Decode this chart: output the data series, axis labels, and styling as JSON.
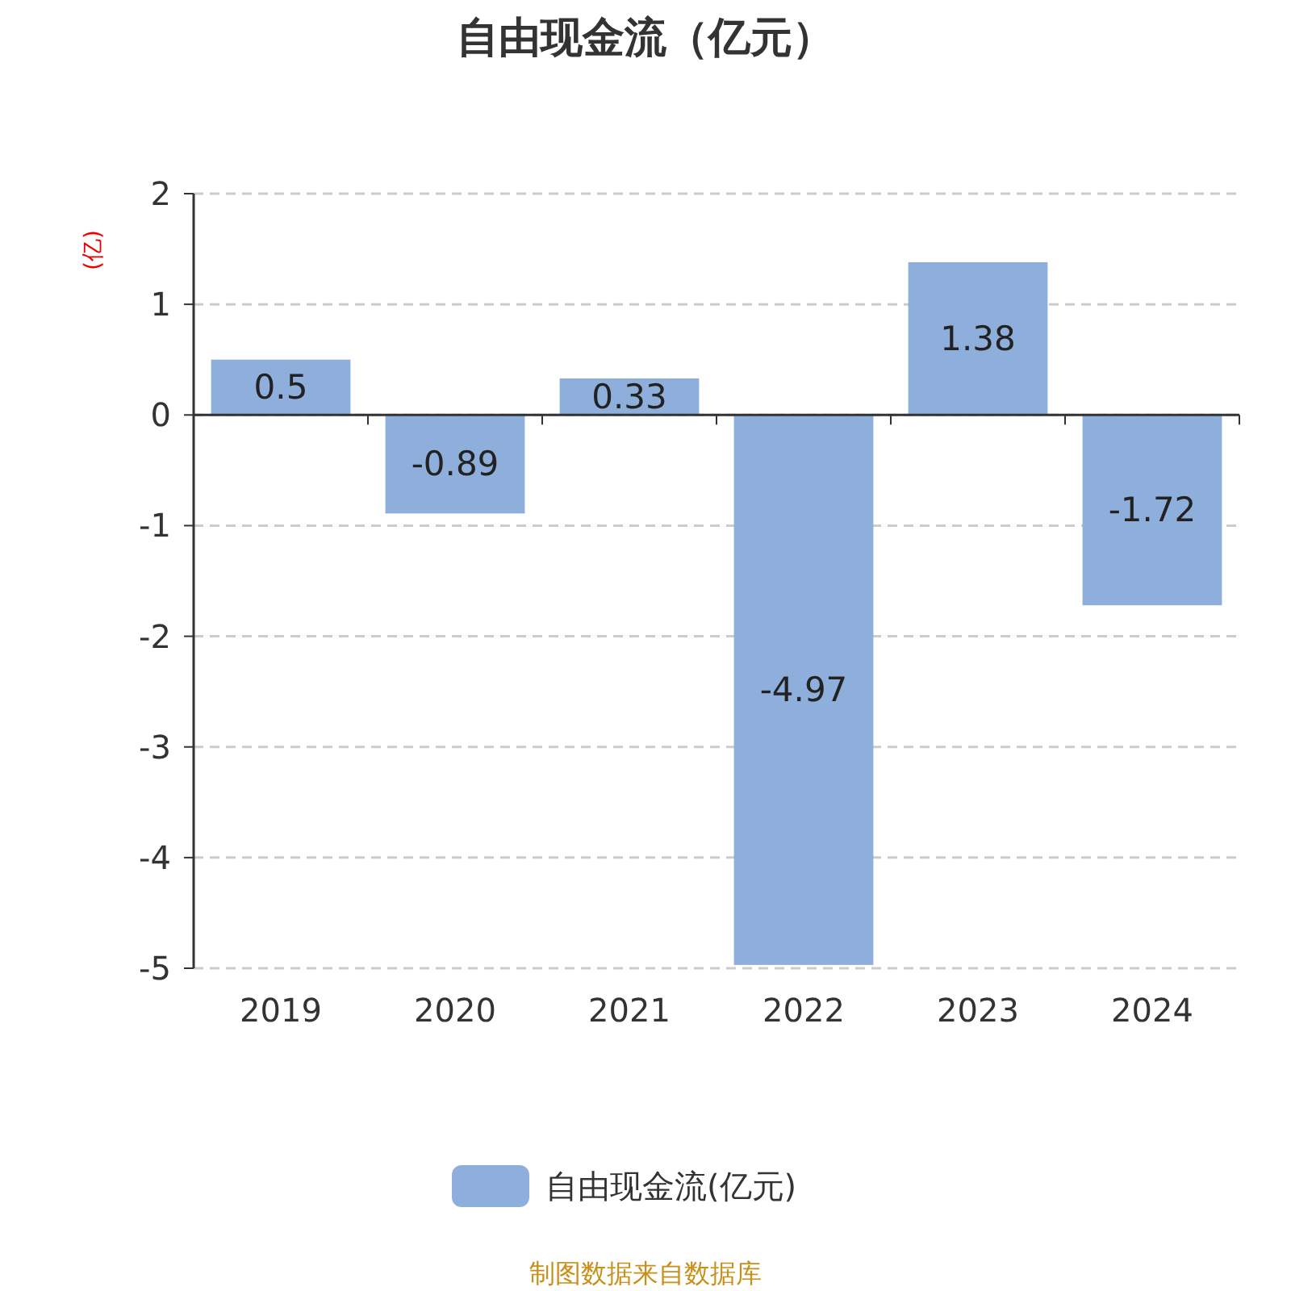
{
  "chart_data": {
    "type": "bar",
    "title": "自由现金流（亿元）",
    "ylabel": "(亿)",
    "categories": [
      "2019",
      "2020",
      "2021",
      "2022",
      "2023",
      "2024"
    ],
    "series": [
      {
        "name": "自由现金流(亿元)",
        "color": "#8eaedb",
        "values": [
          0.5,
          -0.89,
          0.33,
          -4.97,
          1.38,
          -1.72
        ]
      }
    ],
    "ylim": [
      -5,
      2
    ],
    "yticks": [
      -5,
      -4,
      -3,
      -2,
      -1,
      0,
      1,
      2
    ],
    "grid": "y",
    "legend": "bottom",
    "data_labels": true,
    "annotations": [
      "制图数据来自数据库"
    ]
  }
}
